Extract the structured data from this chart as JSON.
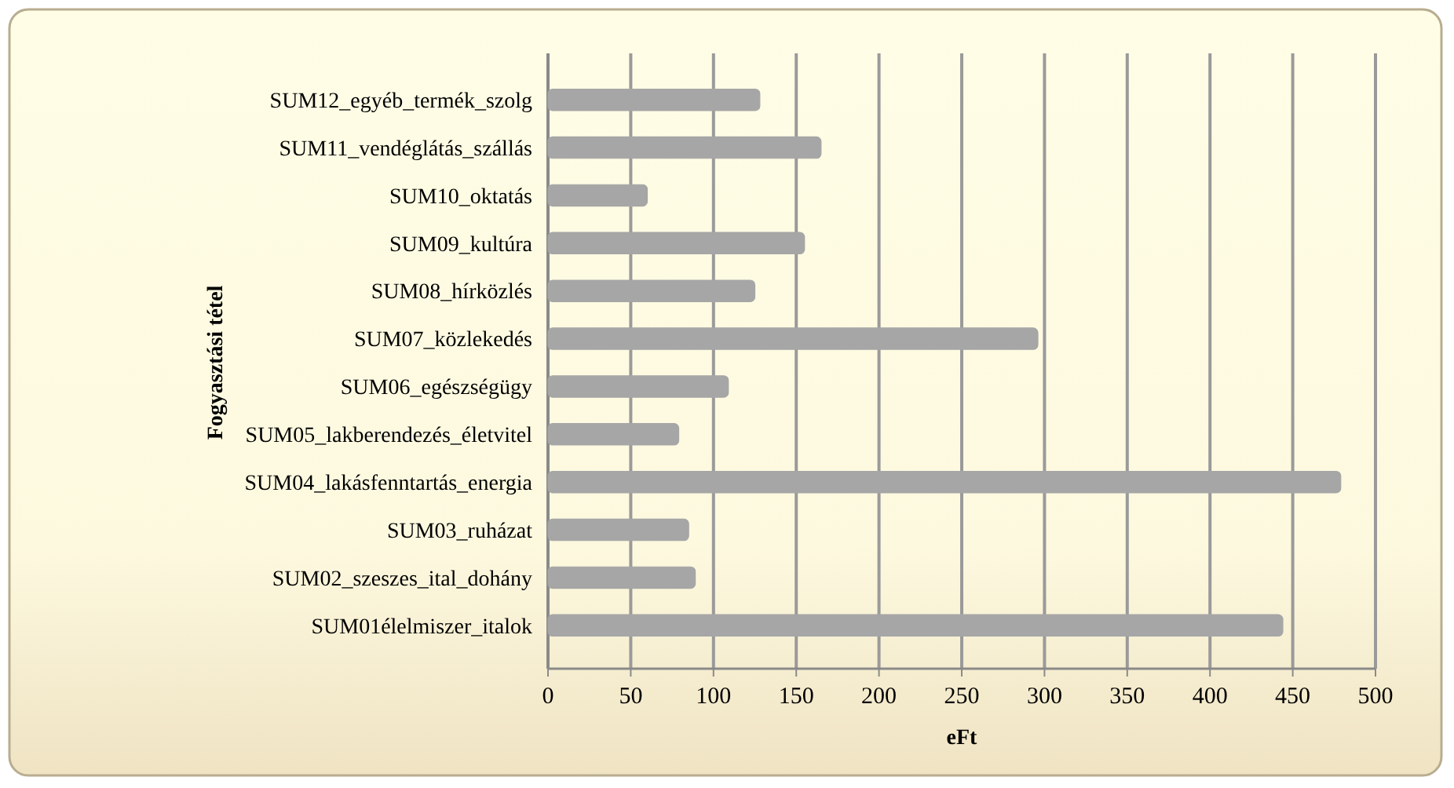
{
  "chart_data": {
    "type": "bar",
    "orientation": "horizontal",
    "xlabel": "eFt",
    "ylabel": "Fogyasztási tétel",
    "categories": [
      "SUM12_egyéb_termék_szolg",
      "SUM11_vendéglátás_szállás",
      "SUM10_oktatás",
      "SUM09_kultúra",
      "SUM08_hírközlés",
      "SUM07_közlekedés",
      "SUM06_egészségügy",
      "SUM05_lakberendezés_életvitel",
      "SUM04_lakásfenntartás_energia",
      "SUM03_ruházat",
      "SUM02_szeszes_ital_dohány",
      "SUM01élelmiszer_italok"
    ],
    "values": [
      128,
      165,
      60,
      155,
      125,
      296,
      109,
      79,
      479,
      85,
      89,
      444
    ],
    "color": "#a6a6a6",
    "xlim": [
      0,
      500
    ],
    "xticks": [
      0,
      50,
      100,
      150,
      200,
      250,
      300,
      350,
      400,
      450,
      500
    ],
    "grid": "x"
  }
}
